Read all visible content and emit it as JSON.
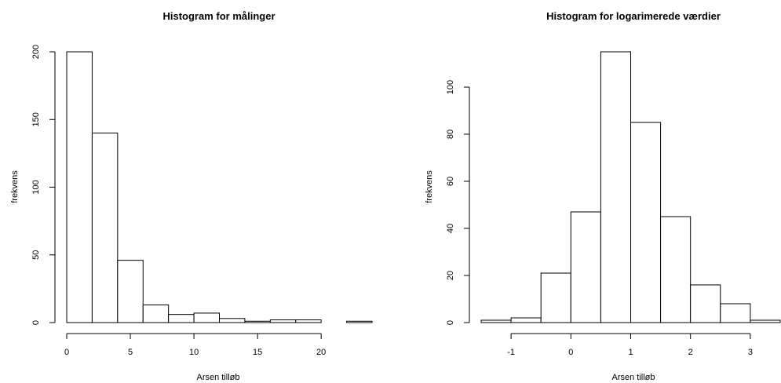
{
  "chart_data": [
    {
      "type": "bar",
      "title": "Histogram for målinger",
      "xlabel": "Arsen tilløb",
      "ylabel": "frekvens",
      "bin_edges": [
        0,
        2,
        4,
        6,
        8,
        10,
        12,
        14,
        16,
        18,
        20,
        22,
        24
      ],
      "values": [
        200,
        140,
        46,
        13,
        6,
        7,
        3,
        1,
        2,
        2,
        0,
        1
      ],
      "xlim": [
        0,
        24
      ],
      "ylim": [
        0,
        200
      ],
      "xticks": [
        "0",
        "5",
        "10",
        "15",
        "20"
      ],
      "yticks": [
        "0",
        "50",
        "100",
        "150",
        "200"
      ],
      "grid": false,
      "legend": "none"
    },
    {
      "type": "bar",
      "title": "Histogram for logarimerede værdier",
      "xlabel": "Arsen tilløb",
      "ylabel": "frekvens",
      "bin_edges": [
        -1.5,
        -1.0,
        -0.5,
        0.0,
        0.5,
        1.0,
        1.5,
        2.0,
        2.5,
        3.0,
        3.5
      ],
      "values": [
        1,
        2,
        21,
        47,
        115,
        85,
        45,
        16,
        8,
        1
      ],
      "xlim": [
        -1.5,
        3.5
      ],
      "ylim": [
        0,
        115
      ],
      "xticks": [
        "-1",
        "0",
        "1",
        "2",
        "3"
      ],
      "yticks": [
        "0",
        "20",
        "40",
        "60",
        "80",
        "100"
      ],
      "grid": false,
      "legend": "none"
    }
  ]
}
